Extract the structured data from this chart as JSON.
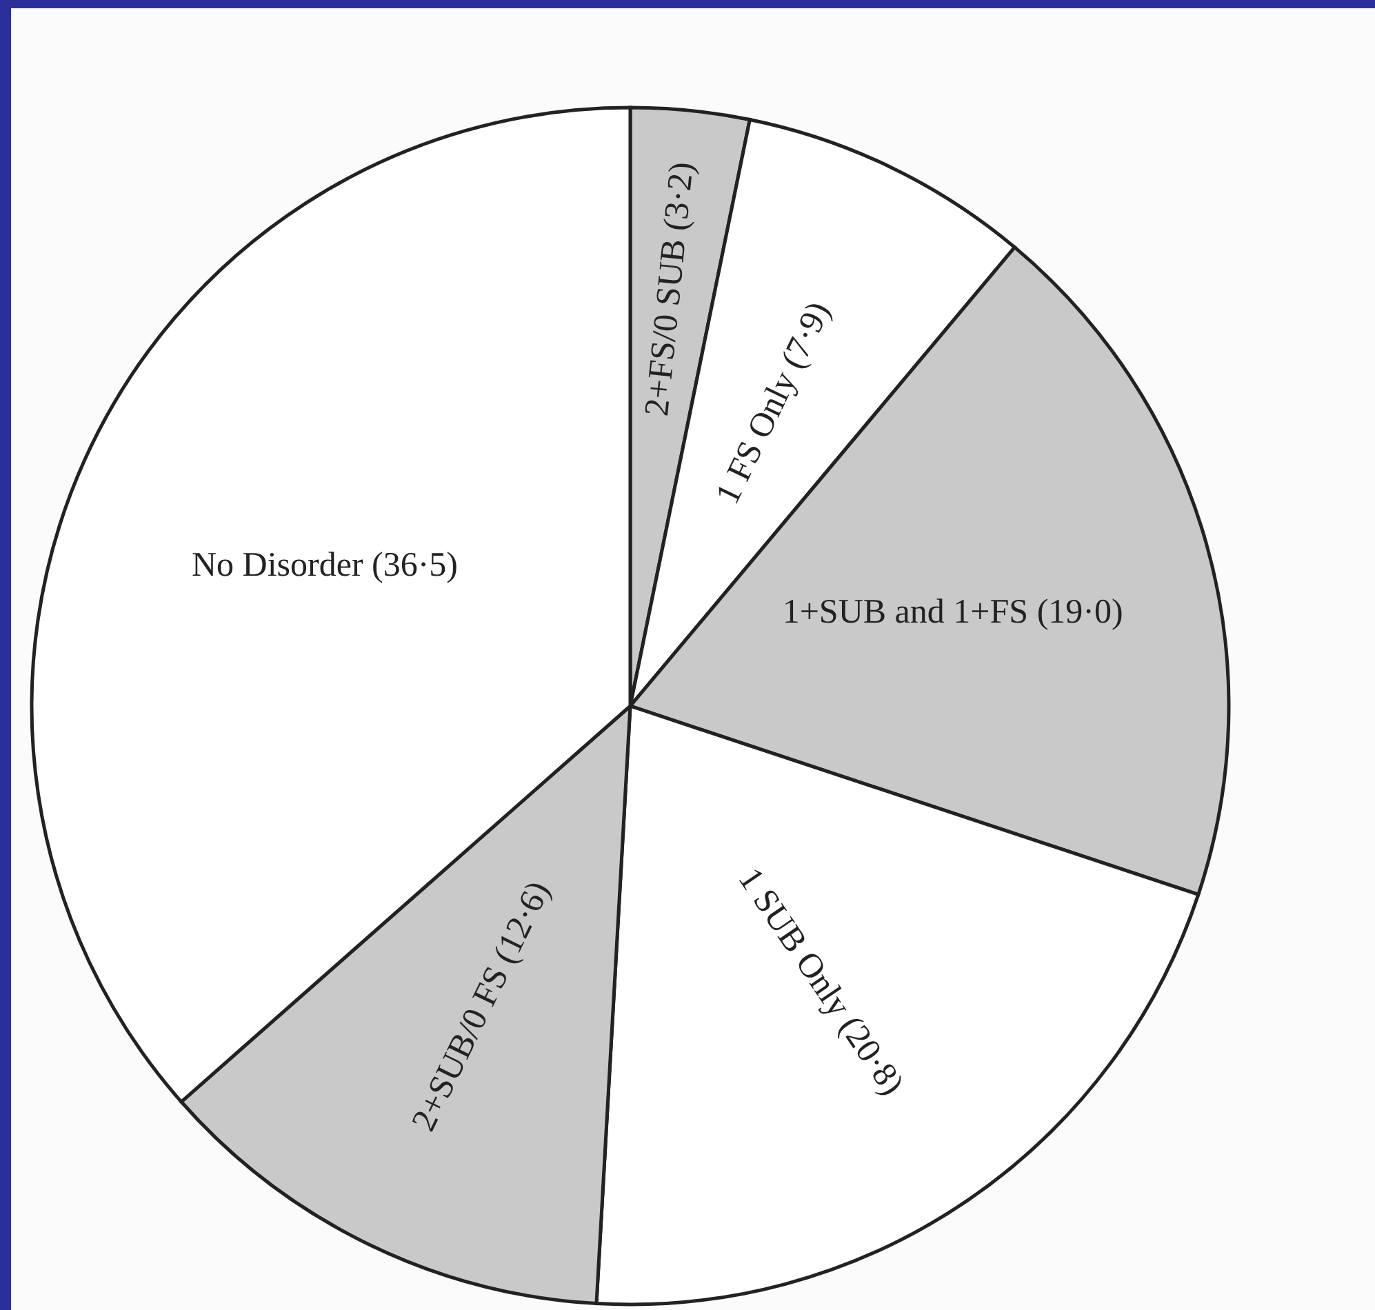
{
  "chart_data": {
    "type": "pie",
    "categories": [
      "2+FS/0 SUB",
      "1 FS Only",
      "1+SUB and 1+FS",
      "1 SUB Only",
      "2+SUB/0 FS",
      "No Disorder"
    ],
    "values": [
      3.2,
      7.9,
      19.0,
      20.8,
      12.6,
      36.5
    ],
    "value_labels": [
      "(3·2)",
      "(7·9)",
      "(19·0)",
      "(20·8)",
      "(12·6)",
      "(36·5)"
    ],
    "colors": [
      "#c9c9c9",
      "#ffffff",
      "#c9c9c9",
      "#ffffff",
      "#c9c9c9",
      "#ffffff"
    ]
  }
}
